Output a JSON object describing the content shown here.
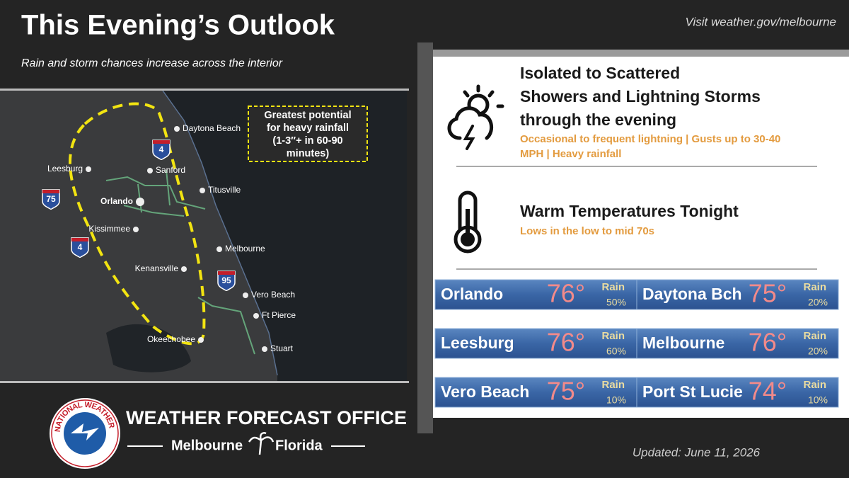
{
  "header": {
    "title": "This Evening’s Outlook",
    "subtitle": "Rain and storm chances increase across the interior",
    "link": "Visit weather.gov/melbourne"
  },
  "map": {
    "callout": [
      "Greatest potential",
      "for heavy rainfall",
      "(1-3″+ in 60-90",
      "minutes)"
    ],
    "cities": [
      "Daytona Beach",
      "Leesburg",
      "Sanford",
      "Titusville",
      "Orlando",
      "Kissimmee",
      "Melbourne",
      "Kenansville",
      "Vero Beach",
      "Ft Pierce",
      "Okeechobee",
      "Stuart"
    ],
    "highways": [
      "75",
      "4",
      "4",
      "95"
    ]
  },
  "hazards": [
    {
      "title": [
        "Isolated to Scattered",
        "Showers and Lightning Storms",
        "through the evening"
      ],
      "details": [
        "Occasional to frequent lightning | Gusts up to 30-40",
        "MPH | Heavy rainfall"
      ]
    },
    {
      "title": [
        "Warm Temperatures Tonight"
      ],
      "details": [
        "Lows in the low to mid 70s"
      ]
    }
  ],
  "forecasts": [
    {
      "city": "Orlando",
      "temp": "76°",
      "rain_label": "Rain",
      "rain_chance": "50%"
    },
    {
      "city": "Daytona Bch",
      "temp": "75°",
      "rain_label": "Rain",
      "rain_chance": "20%"
    },
    {
      "city": "Leesburg",
      "temp": "76°",
      "rain_label": "Rain",
      "rain_chance": "60%"
    },
    {
      "city": "Melbourne",
      "temp": "76°",
      "rain_label": "Rain",
      "rain_chance": "20%"
    },
    {
      "city": "Vero Beach",
      "temp": "75°",
      "rain_label": "Rain",
      "rain_chance": "10%"
    },
    {
      "city": "Port St Lucie",
      "temp": "74°",
      "rain_label": "Rain",
      "rain_chance": "10%"
    }
  ],
  "footer": {
    "logo_text": "NATIONAL WEATHER SERVICE",
    "office": "WEATHER FORECAST OFFICE",
    "city": "Melbourne",
    "state": "Florida",
    "updated": "Updated: June 11, 2026"
  }
}
